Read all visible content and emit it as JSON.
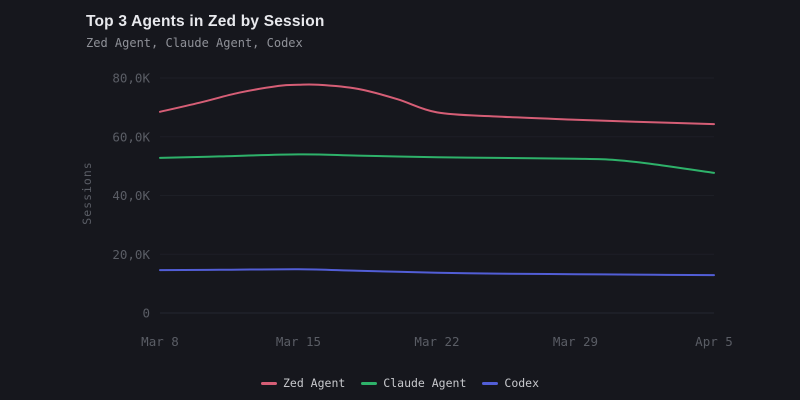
{
  "chart_data": {
    "type": "line",
    "title": "Top 3 Agents in Zed by Session",
    "subtitle": "Zed Agent, Claude Agent, Codex",
    "ylabel": "Sessions",
    "xlabel": "",
    "x_tick_labels": [
      "Mar 8",
      "Mar 15",
      "Mar 22",
      "Mar 29",
      "Apr 5"
    ],
    "x_tick_days": [
      0,
      7,
      14,
      21,
      28
    ],
    "x_range_days": [
      0,
      28
    ],
    "y_tick_labels": [
      "0",
      "20,0K",
      "40,0K",
      "60,0K",
      "80,0K"
    ],
    "y_tick_values": [
      0,
      20000,
      40000,
      60000,
      80000
    ],
    "ylim": [
      0,
      82000
    ],
    "grid": "horizontal-only",
    "legend_position": "bottom-center",
    "series": [
      {
        "name": "Zed Agent",
        "color": "#d65e76",
        "points": [
          [
            0,
            68500
          ],
          [
            2,
            71600
          ],
          [
            4,
            75000
          ],
          [
            6,
            77300
          ],
          [
            7,
            77700
          ],
          [
            8,
            77700
          ],
          [
            10,
            76300
          ],
          [
            12,
            72800
          ],
          [
            14,
            68300
          ],
          [
            17,
            66900
          ],
          [
            21,
            65800
          ],
          [
            24,
            65100
          ],
          [
            28,
            64300
          ]
        ]
      },
      {
        "name": "Claude Agent",
        "color": "#2eb26a",
        "points": [
          [
            0,
            52800
          ],
          [
            3,
            53300
          ],
          [
            7,
            54000
          ],
          [
            10,
            53600
          ],
          [
            14,
            53000
          ],
          [
            17,
            52800
          ],
          [
            21,
            52500
          ],
          [
            23,
            52100
          ],
          [
            25,
            50600
          ],
          [
            28,
            47700
          ]
        ]
      },
      {
        "name": "Codex",
        "color": "#525ed6",
        "points": [
          [
            0,
            14600
          ],
          [
            3,
            14700
          ],
          [
            7,
            14900
          ],
          [
            10,
            14400
          ],
          [
            14,
            13700
          ],
          [
            17,
            13400
          ],
          [
            21,
            13200
          ],
          [
            25,
            13000
          ],
          [
            28,
            12900
          ]
        ]
      }
    ]
  },
  "colors": {
    "background": "#16171d",
    "title_text": "#e8e9ed",
    "subtitle_text": "#8f9198",
    "tick_text": "#5a5d65",
    "grid_line": "#1d1f26",
    "zero_line": "#242731",
    "legend_text": "#c7c8cc"
  }
}
